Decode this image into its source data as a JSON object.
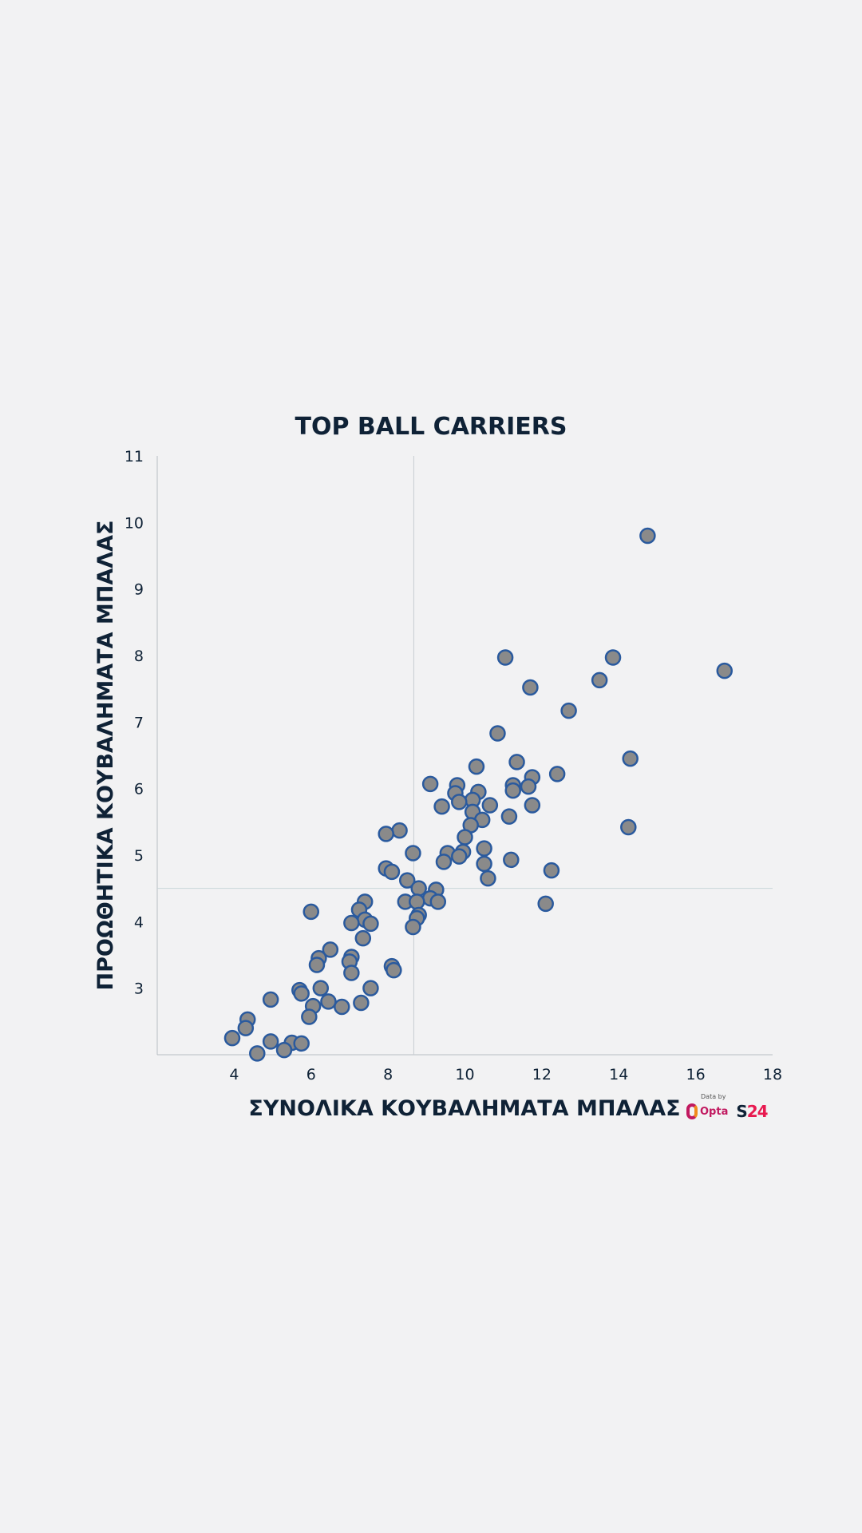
{
  "chart_data": {
    "type": "scatter",
    "title": "TOP BALL CARRIERS",
    "xlabel": "ΣΥΝΟΛΙΚΑ ΚΟΥΒΑΛΗΜΑΤΑ ΜΠΑΛΑΣ",
    "ylabel": "ΠΡΟΩΘΗΤΙΚΑ ΚΟΥΒΑΛΗΜΑΤΑ ΜΠΑΛΑΣ",
    "xlim": [
      2,
      18
    ],
    "ylim": [
      2,
      11
    ],
    "xticks": [
      "4",
      "6",
      "8",
      "10",
      "12",
      "14",
      "16",
      "18"
    ],
    "yticks": [
      "3",
      "4",
      "5",
      "6",
      "7",
      "8",
      "9",
      "10",
      "11"
    ],
    "reference_lines": {
      "x": 8.67,
      "y": 4.5
    },
    "grid": false,
    "points": [
      {
        "x": 14.75,
        "y": 9.8
      },
      {
        "x": 16.75,
        "y": 7.77
      },
      {
        "x": 13.85,
        "y": 7.97
      },
      {
        "x": 13.5,
        "y": 7.63
      },
      {
        "x": 11.05,
        "y": 7.97
      },
      {
        "x": 11.7,
        "y": 7.52
      },
      {
        "x": 12.7,
        "y": 7.17
      },
      {
        "x": 10.85,
        "y": 6.83
      },
      {
        "x": 14.3,
        "y": 6.45
      },
      {
        "x": 11.35,
        "y": 6.4
      },
      {
        "x": 10.3,
        "y": 6.33
      },
      {
        "x": 12.4,
        "y": 6.22
      },
      {
        "x": 11.75,
        "y": 6.17
      },
      {
        "x": 9.1,
        "y": 6.07
      },
      {
        "x": 9.8,
        "y": 6.05
      },
      {
        "x": 11.25,
        "y": 6.05
      },
      {
        "x": 11.65,
        "y": 6.03
      },
      {
        "x": 11.25,
        "y": 5.97
      },
      {
        "x": 10.35,
        "y": 5.95
      },
      {
        "x": 9.75,
        "y": 5.93
      },
      {
        "x": 10.2,
        "y": 5.83
      },
      {
        "x": 9.85,
        "y": 5.8
      },
      {
        "x": 9.4,
        "y": 5.73
      },
      {
        "x": 10.65,
        "y": 5.75
      },
      {
        "x": 11.75,
        "y": 5.75
      },
      {
        "x": 10.2,
        "y": 5.65
      },
      {
        "x": 11.15,
        "y": 5.58
      },
      {
        "x": 10.45,
        "y": 5.53
      },
      {
        "x": 10.15,
        "y": 5.45
      },
      {
        "x": 14.25,
        "y": 5.42
      },
      {
        "x": 8.3,
        "y": 5.37
      },
      {
        "x": 7.95,
        "y": 5.32
      },
      {
        "x": 10.0,
        "y": 5.27
      },
      {
        "x": 10.5,
        "y": 5.1
      },
      {
        "x": 9.95,
        "y": 5.05
      },
      {
        "x": 9.55,
        "y": 5.03
      },
      {
        "x": 8.65,
        "y": 5.03
      },
      {
        "x": 9.85,
        "y": 4.98
      },
      {
        "x": 9.45,
        "y": 4.9
      },
      {
        "x": 11.2,
        "y": 4.93
      },
      {
        "x": 10.5,
        "y": 4.87
      },
      {
        "x": 7.95,
        "y": 4.8
      },
      {
        "x": 8.1,
        "y": 4.75
      },
      {
        "x": 12.25,
        "y": 4.77
      },
      {
        "x": 10.6,
        "y": 4.65
      },
      {
        "x": 8.5,
        "y": 4.62
      },
      {
        "x": 8.8,
        "y": 4.5
      },
      {
        "x": 9.25,
        "y": 4.48
      },
      {
        "x": 9.1,
        "y": 4.35
      },
      {
        "x": 9.3,
        "y": 4.3
      },
      {
        "x": 8.45,
        "y": 4.3
      },
      {
        "x": 8.75,
        "y": 4.3
      },
      {
        "x": 7.4,
        "y": 4.3
      },
      {
        "x": 12.1,
        "y": 4.27
      },
      {
        "x": 7.25,
        "y": 4.18
      },
      {
        "x": 6.0,
        "y": 4.15
      },
      {
        "x": 8.8,
        "y": 4.1
      },
      {
        "x": 8.75,
        "y": 4.05
      },
      {
        "x": 7.4,
        "y": 4.03
      },
      {
        "x": 7.05,
        "y": 3.98
      },
      {
        "x": 7.55,
        "y": 3.97
      },
      {
        "x": 8.65,
        "y": 3.92
      },
      {
        "x": 7.35,
        "y": 3.75
      },
      {
        "x": 6.5,
        "y": 3.58
      },
      {
        "x": 7.05,
        "y": 3.47
      },
      {
        "x": 6.2,
        "y": 3.45
      },
      {
        "x": 7.0,
        "y": 3.4
      },
      {
        "x": 6.15,
        "y": 3.35
      },
      {
        "x": 8.1,
        "y": 3.33
      },
      {
        "x": 8.15,
        "y": 3.27
      },
      {
        "x": 7.05,
        "y": 3.23
      },
      {
        "x": 6.25,
        "y": 3.0
      },
      {
        "x": 7.55,
        "y": 3.0
      },
      {
        "x": 5.7,
        "y": 2.97
      },
      {
        "x": 5.75,
        "y": 2.92
      },
      {
        "x": 4.95,
        "y": 2.83
      },
      {
        "x": 6.45,
        "y": 2.8
      },
      {
        "x": 7.3,
        "y": 2.78
      },
      {
        "x": 6.05,
        "y": 2.73
      },
      {
        "x": 6.8,
        "y": 2.72
      },
      {
        "x": 5.95,
        "y": 2.57
      },
      {
        "x": 4.35,
        "y": 2.53
      },
      {
        "x": 4.3,
        "y": 2.4
      },
      {
        "x": 3.95,
        "y": 2.25
      },
      {
        "x": 4.95,
        "y": 2.2
      },
      {
        "x": 5.5,
        "y": 2.18
      },
      {
        "x": 5.75,
        "y": 2.17
      },
      {
        "x": 5.3,
        "y": 2.07
      },
      {
        "x": 4.6,
        "y": 2.02
      }
    ]
  },
  "logos": {
    "data_by": "Data by",
    "opta": "Opta",
    "brand_s": "S",
    "brand_num": "24"
  }
}
